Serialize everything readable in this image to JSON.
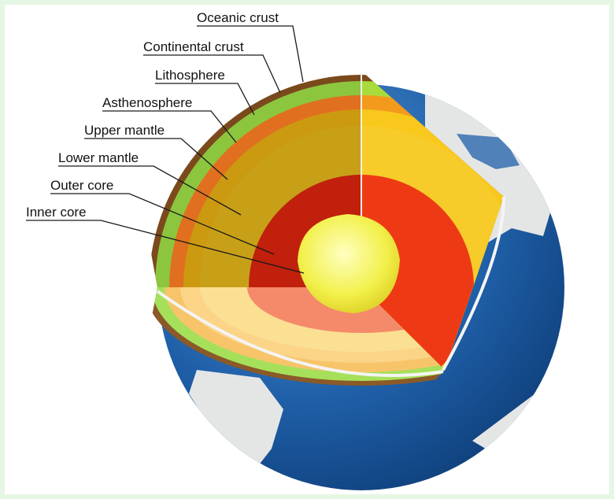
{
  "layers": [
    {
      "id": "oceanic-crust",
      "label": "Oceanic crust"
    },
    {
      "id": "continental-crust",
      "label": "Continental crust"
    },
    {
      "id": "lithosphere",
      "label": "Lithosphere"
    },
    {
      "id": "asthenosphere",
      "label": "Asthenosphere"
    },
    {
      "id": "upper-mantle",
      "label": "Upper mantle"
    },
    {
      "id": "lower-mantle",
      "label": "Lower mantle"
    },
    {
      "id": "outer-core",
      "label": "Outer core"
    },
    {
      "id": "inner-core",
      "label": "Inner core"
    }
  ],
  "colors": {
    "ocean": "#1f5fa8",
    "land": "#e4e6e6",
    "crust": "#7a4a1c",
    "lithosphere": "#8cc63f",
    "asthenosphere": "#e0701f",
    "upper_mantle": "#cc9a10",
    "lower_mantle": "#c8a018",
    "outer_core": "#c0200c",
    "inner_core": "#f2f04a"
  }
}
